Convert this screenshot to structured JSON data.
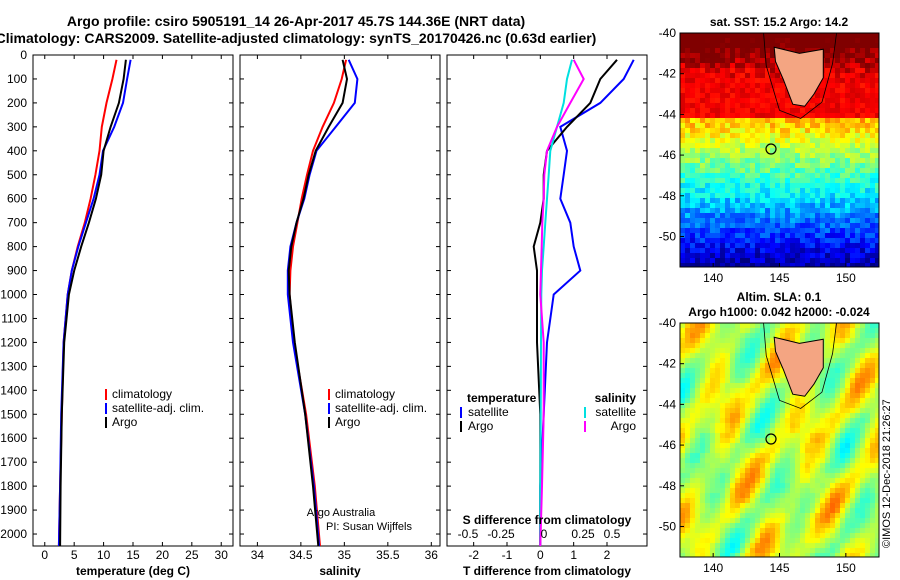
{
  "header": {
    "title_line1": "Argo profile: csiro 5905191_14 26-Apr-2017 45.7S 144.36E (NRT data)",
    "title_line2": "Climatology: CARS2009. Satellite-adjusted climatology: synTS_20170426.nc (0.63d earlier)"
  },
  "colors": {
    "climatology": "#ff0000",
    "satellite": "#0000ff",
    "argo": "#000000",
    "salinity_sat": "#00e0e0",
    "salinity_argo": "#ff00ff",
    "land": "#f4a582"
  },
  "depth_axis": {
    "ticks": [
      "0",
      "100",
      "200",
      "300",
      "400",
      "500",
      "600",
      "700",
      "800",
      "900",
      "1000",
      "1100",
      "1200",
      "1300",
      "1400",
      "1500",
      "1600",
      "1700",
      "1800",
      "1900",
      "2000"
    ],
    "range": [
      0,
      2050
    ]
  },
  "chart_data": [
    {
      "type": "line",
      "id": "temperature",
      "xlabel": "temperature (deg C)",
      "xticks": [
        "0",
        "5",
        "10",
        "15",
        "20",
        "25",
        "30"
      ],
      "xlim": [
        -2,
        32
      ],
      "ylim": [
        0,
        2050
      ],
      "legend": [
        "climatology",
        "satellite-adj. clim.",
        "Argo"
      ],
      "series": [
        {
          "name": "climatology",
          "color": "#ff0000",
          "x": [
            12.2,
            11.5,
            10.5,
            9.7,
            9.3,
            8.6,
            7.8,
            6.8,
            5.6,
            4.6,
            3.9,
            3.2,
            2.9,
            2.6,
            2.4
          ],
          "y": [
            20,
            100,
            200,
            300,
            400,
            500,
            600,
            700,
            800,
            900,
            1000,
            1200,
            1500,
            1800,
            2050
          ]
        },
        {
          "name": "satellite-adj. clim.",
          "color": "#0000ff",
          "x": [
            14.6,
            14.0,
            13.3,
            11.8,
            9.9,
            9.3,
            8.3,
            7.0,
            5.7,
            4.6,
            3.9,
            3.2,
            2.8,
            2.6,
            2.4
          ],
          "y": [
            20,
            100,
            200,
            300,
            400,
            500,
            600,
            700,
            800,
            900,
            1000,
            1200,
            1500,
            1800,
            2050
          ]
        },
        {
          "name": "Argo",
          "color": "#000000",
          "x": [
            13.8,
            13.4,
            12.6,
            11.2,
            10.0,
            9.6,
            8.7,
            7.5,
            6.2,
            5.0,
            4.1,
            3.3,
            2.9,
            2.7,
            2.6
          ],
          "y": [
            20,
            100,
            200,
            300,
            400,
            500,
            600,
            700,
            800,
            900,
            1000,
            1200,
            1500,
            1800,
            2050
          ]
        }
      ]
    },
    {
      "type": "line",
      "id": "salinity",
      "xlabel": "salinity",
      "xticks": [
        "34",
        "34.5",
        "35",
        "35.5",
        "36"
      ],
      "xlim": [
        33.8,
        36.1
      ],
      "ylim": [
        0,
        2050
      ],
      "legend": [
        "climatology",
        "satellite-adj. clim.",
        "Argo"
      ],
      "annotation": [
        "Argo Australia",
        "PI: Susan Wijffels"
      ],
      "series": [
        {
          "name": "climatology",
          "color": "#ff0000",
          "x": [
            35.02,
            34.97,
            34.88,
            34.75,
            34.64,
            34.57,
            34.51,
            34.46,
            34.41,
            34.38,
            34.37,
            34.42,
            34.56,
            34.66,
            34.72
          ],
          "y": [
            20,
            100,
            200,
            300,
            400,
            500,
            600,
            700,
            800,
            900,
            1000,
            1200,
            1500,
            1800,
            2050
          ]
        },
        {
          "name": "satellite-adj. clim.",
          "color": "#0000ff",
          "x": [
            35.05,
            35.15,
            35.12,
            34.9,
            34.68,
            34.6,
            34.54,
            34.45,
            34.38,
            34.35,
            34.35,
            34.41,
            34.55,
            34.65,
            34.71
          ],
          "y": [
            20,
            100,
            200,
            300,
            400,
            500,
            600,
            700,
            800,
            900,
            1000,
            1200,
            1500,
            1800,
            2050
          ]
        },
        {
          "name": "Argo",
          "color": "#000000",
          "x": [
            34.98,
            35.03,
            34.98,
            34.82,
            34.67,
            34.59,
            34.53,
            34.45,
            34.39,
            34.36,
            34.37,
            34.43,
            34.55,
            34.64,
            34.7
          ],
          "y": [
            20,
            100,
            200,
            300,
            400,
            500,
            600,
            700,
            800,
            900,
            1000,
            1200,
            1500,
            1800,
            2050
          ]
        }
      ]
    },
    {
      "type": "line",
      "id": "difference",
      "xlabel": "T difference from climatology",
      "xticks": [
        "-2",
        "-1",
        "0",
        "1",
        "2"
      ],
      "xlim": [
        -2.8,
        3.2
      ],
      "xlabel2": "S difference from climatology",
      "xticks2": [
        "-0.5",
        "-0.25",
        "0",
        "0.25",
        "0.5"
      ],
      "legend_temperature": [
        "temperature",
        "satellite",
        "Argo"
      ],
      "legend_salinity": [
        "salinity",
        "satellite",
        "Argo"
      ],
      "ylim": [
        0,
        2050
      ],
      "series": [
        {
          "name": "temperature satellite",
          "color": "#0000ff",
          "x": [
            2.8,
            2.5,
            1.8,
            0.6,
            0.8,
            0.7,
            0.6,
            0.9,
            1.0,
            1.2,
            0.4,
            0.2,
            0.1,
            0.0,
            0.0
          ],
          "y": [
            20,
            100,
            200,
            300,
            400,
            500,
            600,
            700,
            800,
            900,
            1000,
            1200,
            1500,
            1800,
            2050
          ]
        },
        {
          "name": "temperature Argo",
          "color": "#000000",
          "x": [
            2.3,
            1.8,
            1.5,
            0.8,
            0.2,
            0.1,
            0.1,
            0.0,
            -0.2,
            -0.1,
            -0.1,
            -0.1,
            0.0,
            0.0,
            0.0
          ],
          "y": [
            20,
            100,
            200,
            300,
            400,
            500,
            600,
            700,
            800,
            900,
            1000,
            1200,
            1500,
            1800,
            2050
          ]
        },
        {
          "name": "salinity satellite",
          "color": "#00e0e0",
          "x": [
            0.95,
            0.8,
            0.7,
            0.5,
            0.3,
            0.25,
            0.2,
            0.15,
            0.1,
            0.05,
            0.03,
            0.02,
            0.01,
            0.0,
            0.0
          ],
          "y": [
            20,
            100,
            200,
            300,
            400,
            500,
            600,
            700,
            800,
            900,
            1000,
            1200,
            1500,
            1800,
            2050
          ]
        },
        {
          "name": "salinity Argo",
          "color": "#ff00ff",
          "x": [
            1.0,
            1.3,
            0.9,
            0.5,
            0.2,
            0.12,
            0.1,
            0.06,
            0.04,
            0.02,
            0.0,
            0.1,
            0.1,
            0.05,
            0.0
          ],
          "y": [
            20,
            100,
            200,
            300,
            400,
            500,
            600,
            700,
            800,
            900,
            1000,
            1200,
            1500,
            1800,
            2050
          ]
        }
      ]
    },
    {
      "type": "heatmap",
      "id": "sst-map",
      "title": "sat. SST: 15.2 Argo: 14.2",
      "xticks": [
        "140",
        "145",
        "150"
      ],
      "yticks": [
        "-40",
        "-42",
        "-44",
        "-46",
        "-48",
        "-50"
      ],
      "xlim": [
        137.5,
        152.5
      ],
      "ylim": [
        -51.5,
        -40
      ],
      "marker": {
        "lon": 144.36,
        "lat": -45.7
      }
    },
    {
      "type": "heatmap",
      "id": "sla-map",
      "title": "Altim. SLA: 0.1",
      "subtitle": "Argo h1000: 0.042 h2000: -0.024",
      "xticks": [
        "140",
        "145",
        "150"
      ],
      "yticks": [
        "-40",
        "-42",
        "-44",
        "-46",
        "-48",
        "-50"
      ],
      "xlim": [
        137.5,
        152.5
      ],
      "ylim": [
        -51.5,
        -40
      ],
      "marker": {
        "lon": 144.36,
        "lat": -45.7
      }
    }
  ],
  "footer": {
    "credit": "©IMOS 12-Dec-2018 21:26:27"
  }
}
